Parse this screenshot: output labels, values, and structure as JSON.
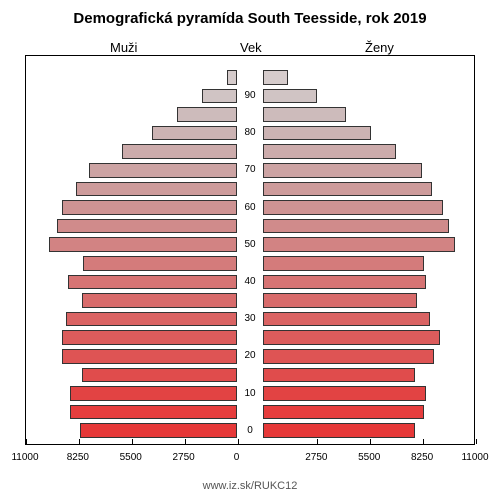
{
  "title": "Demografická pyramída South Teesside, rok 2019",
  "title_fontsize": 15,
  "label_male": "Muži",
  "label_age": "Vek",
  "label_female": "Ženy",
  "caption": "www.iz.sk/RUKC12",
  "xlim_max": 11000,
  "xticks": [
    11000,
    8250,
    5500,
    2750,
    0,
    2750,
    5500,
    8250,
    11000
  ],
  "age_ticks": [
    0,
    10,
    20,
    30,
    40,
    50,
    60,
    70,
    80,
    90
  ],
  "background_color": "#ffffff",
  "border_color": "#000000",
  "bar_border_color": "#333333",
  "male_values": [
    8200,
    8700,
    8700,
    8100,
    9100,
    9100,
    8900,
    8100,
    8800,
    8000,
    9800,
    9400,
    9100,
    8400,
    7700,
    6000,
    4400,
    3100,
    1800,
    500
  ],
  "female_values": [
    7900,
    8400,
    8500,
    7900,
    8900,
    9200,
    8700,
    8000,
    8500,
    8400,
    10000,
    9700,
    9400,
    8800,
    8300,
    6900,
    5600,
    4300,
    2800,
    1300
  ],
  "colors": [
    "#e63838",
    "#e63d3d",
    "#e24343",
    "#e04c4c",
    "#de5454",
    "#dc5c5c",
    "#da6363",
    "#d86b6b",
    "#d67373",
    "#d47b7b",
    "#d28383",
    "#d08b8b",
    "#ce9393",
    "#cd9b9b",
    "#cca3a3",
    "#ccabab",
    "#ccb3b3",
    "#cdbbbb",
    "#d0c4c4",
    "#d6cccc"
  ]
}
